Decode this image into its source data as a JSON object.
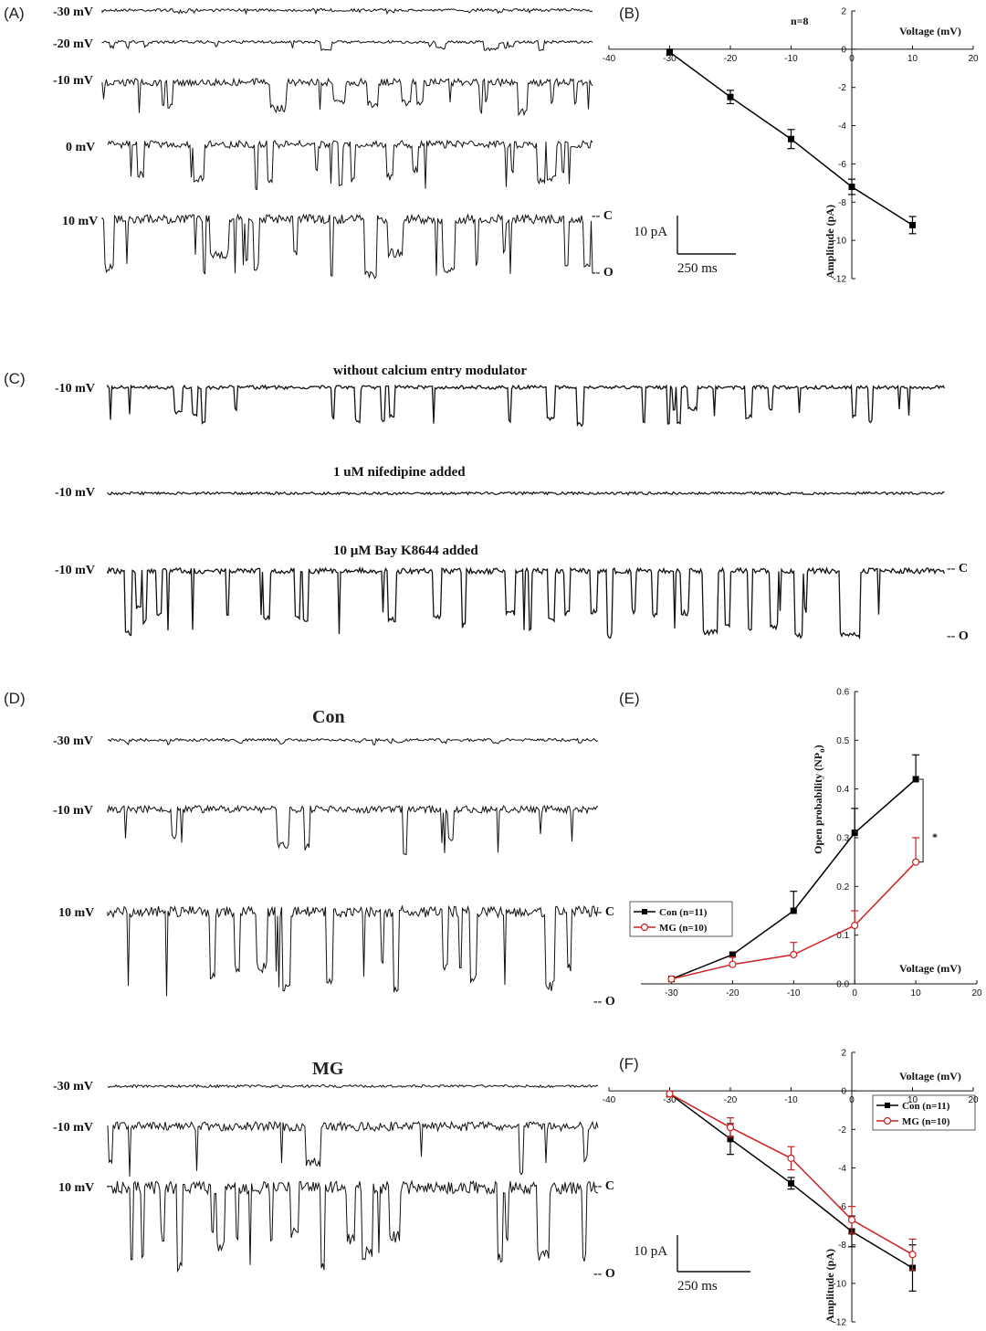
{
  "panels": {
    "A": "(A)",
    "B": "(B)",
    "C": "(C)",
    "D": "(D)",
    "E": "(E)",
    "F": "(F)"
  },
  "panel_a": {
    "voltages": [
      "-30 mV",
      "-20 mV",
      "-10 mV",
      "0 mV",
      "10 mV"
    ],
    "closed_marker": "-- C",
    "open_marker": "-- O",
    "scale_current": "10 pA",
    "scale_time": "250 ms"
  },
  "panel_c": {
    "titles": [
      "without calcium entry modulator",
      "1 uM nifedipine added",
      "10 µM Bay K8644 added"
    ],
    "voltages": [
      "-10 mV",
      "-10 mV",
      "-10 mV"
    ],
    "closed_marker": "-- C",
    "open_marker": "-- O"
  },
  "panel_d": {
    "con_title": "Con",
    "mg_title": "MG",
    "con_voltages": [
      "-30 mV",
      "-10 mV",
      "10 mV"
    ],
    "mg_voltages": [
      "-30 mV",
      "-10 mV",
      "10 mV"
    ],
    "closed_marker": "-- C",
    "open_marker": "-- O",
    "scale_current": "10 pA",
    "scale_time": "250 ms"
  },
  "chart_data": [
    {
      "panel": "B",
      "type": "line",
      "xlabel": "Voltage (mV)",
      "ylabel": "Amplitude (pA)",
      "annotation": "n=8",
      "xlim": [
        -40,
        20
      ],
      "ylim": [
        -12,
        2
      ],
      "xticks": [
        -40,
        -30,
        -20,
        -10,
        0,
        10,
        20
      ],
      "yticks": [
        2,
        0,
        -2,
        -4,
        -6,
        -8,
        -10,
        -12
      ],
      "series": [
        {
          "x": [
            -30,
            -20,
            -10,
            0,
            10
          ],
          "y": [
            -0.15,
            -2.5,
            -4.7,
            -7.2,
            -9.2
          ],
          "err": [
            0.15,
            0.35,
            0.5,
            0.4,
            0.45
          ],
          "color": "#000000",
          "marker": "filled-square"
        }
      ]
    },
    {
      "panel": "E",
      "type": "line",
      "xlabel": "Voltage (mV)",
      "ylabel": "Open probability (NP",
      "ylabel_sub": "o",
      "ylabel_end": ")",
      "annotation": "*",
      "xlim": [
        -35,
        20
      ],
      "ylim": [
        0,
        0.6
      ],
      "xticks": [
        -30,
        -20,
        -10,
        0,
        10,
        20
      ],
      "yticks": [
        0.0,
        0.1,
        0.2,
        0.3,
        0.4,
        0.5,
        0.6
      ],
      "series": [
        {
          "name": "Con (n=11)",
          "x": [
            -30,
            -20,
            -10,
            0,
            10
          ],
          "y": [
            0.01,
            0.06,
            0.15,
            0.31,
            0.42
          ],
          "err": [
            0.0,
            0.0,
            0.04,
            0.05,
            0.05
          ],
          "color": "#000000",
          "marker": "filled-square"
        },
        {
          "name": "MG (n=10)",
          "x": [
            -30,
            -20,
            -10,
            0,
            10
          ],
          "y": [
            0.01,
            0.04,
            0.06,
            0.12,
            0.25
          ],
          "err": [
            0.0,
            0.015,
            0.025,
            0.03,
            0.05
          ],
          "color": "#cc2222",
          "marker": "open-circle"
        }
      ]
    },
    {
      "panel": "F",
      "type": "line",
      "xlabel": "Voltage (mV)",
      "ylabel": "Amplitude (pA)",
      "xlim": [
        -40,
        20
      ],
      "ylim": [
        -12,
        2
      ],
      "xticks": [
        -40,
        -30,
        -20,
        -10,
        0,
        10,
        20
      ],
      "yticks": [
        2,
        0,
        -2,
        -4,
        -6,
        -8,
        -10,
        -12
      ],
      "series": [
        {
          "name": "Con (n=11)",
          "x": [
            -30,
            -20,
            -10,
            0,
            10
          ],
          "y": [
            -0.15,
            -2.5,
            -4.8,
            -7.3,
            -9.2
          ],
          "err": [
            0.15,
            0.8,
            0.3,
            0.8,
            1.2
          ],
          "color": "#000000",
          "marker": "filled-square"
        },
        {
          "name": "MG (n=10)",
          "x": [
            -30,
            -20,
            -10,
            0,
            10
          ],
          "y": [
            -0.15,
            -1.9,
            -3.5,
            -6.7,
            -8.5
          ],
          "err": [
            0.15,
            0.5,
            0.6,
            0.7,
            0.8
          ],
          "color": "#cc2222",
          "marker": "open-circle"
        }
      ]
    }
  ]
}
